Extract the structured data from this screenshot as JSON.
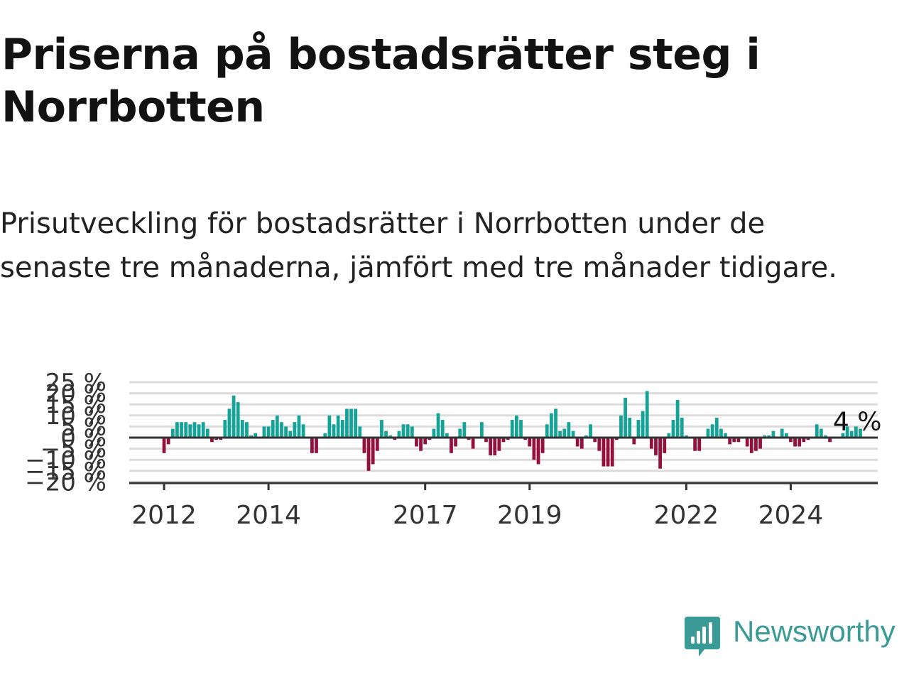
{
  "title": "Priserna på bostadsrätter steg i Norrbotten",
  "subtitle": "Prisutveckling för bostadsrätter i Norrbotten under de senaste tre månaderna, jämfört med tre månader tidigare.",
  "brand": {
    "name": "Newsworthy",
    "color": "#3a9a95"
  },
  "colors": {
    "positive": "#14a396",
    "negative": "#94113d",
    "grid": "#dcdcdc",
    "axis": "#333333"
  },
  "chart_data": {
    "type": "bar",
    "title": "",
    "xlabel": "",
    "ylabel": "",
    "ylim": [
      -20,
      25
    ],
    "y_ticks": [
      25,
      20,
      15,
      10,
      5,
      0,
      -5,
      -10,
      -15,
      -20
    ],
    "y_tick_labels": [
      "25 %",
      "20 %",
      "15 %",
      "10 %",
      "5 %",
      "0 %",
      "−5 %",
      "−10 %",
      "−15 %",
      "−20 %"
    ],
    "x_ticks": [
      {
        "year": 2012,
        "label": "2012"
      },
      {
        "year": 2014,
        "label": "2014"
      },
      {
        "year": 2017,
        "label": "2017"
      },
      {
        "year": 2019,
        "label": "2019"
      },
      {
        "year": 2022,
        "label": "2022"
      },
      {
        "year": 2024,
        "label": "2024"
      }
    ],
    "x_range": [
      "2011-05",
      "2025-09"
    ],
    "start_month": "2012-01",
    "annotation": {
      "label": "4 %",
      "value": 4
    },
    "grid": true,
    "values": [
      -7,
      -3,
      4,
      7,
      7,
      7,
      6,
      7,
      6,
      7,
      4,
      -2,
      -1,
      -1,
      8,
      13,
      19,
      16,
      8,
      7,
      1,
      2,
      0,
      5,
      5,
      8,
      10,
      7,
      5,
      3,
      7,
      10,
      6,
      0,
      -7,
      -7,
      0,
      2,
      10,
      6,
      10,
      8,
      13,
      13,
      13,
      5,
      -7,
      -15,
      -12,
      -6,
      8,
      3,
      1,
      -1,
      3,
      6,
      6,
      5,
      -4,
      -6,
      -3,
      -1,
      4,
      11,
      8,
      2,
      -7,
      -4,
      4,
      7,
      -1,
      -5,
      0,
      7,
      -2,
      -8,
      -8,
      -6,
      -2,
      -1,
      8,
      10,
      8,
      -1,
      -4,
      -10,
      -12,
      -7,
      6,
      11,
      13,
      3,
      4,
      7,
      3,
      -4,
      -5,
      1,
      6,
      -2,
      -6,
      -13,
      -13,
      -13,
      -1,
      10,
      18,
      9,
      -3,
      8,
      12,
      21,
      -5,
      -8,
      -14,
      -7,
      2,
      8,
      17,
      9,
      1,
      0,
      -6,
      -6,
      0,
      4,
      6,
      9,
      4,
      2,
      -3,
      -2,
      -2,
      0,
      -4,
      -7,
      -6,
      -5,
      1,
      1,
      3,
      0,
      4,
      2,
      -2,
      -4,
      -4,
      -2,
      -1,
      0,
      6,
      4,
      1,
      -2,
      0,
      0,
      2,
      5,
      3,
      5,
      4
    ]
  }
}
